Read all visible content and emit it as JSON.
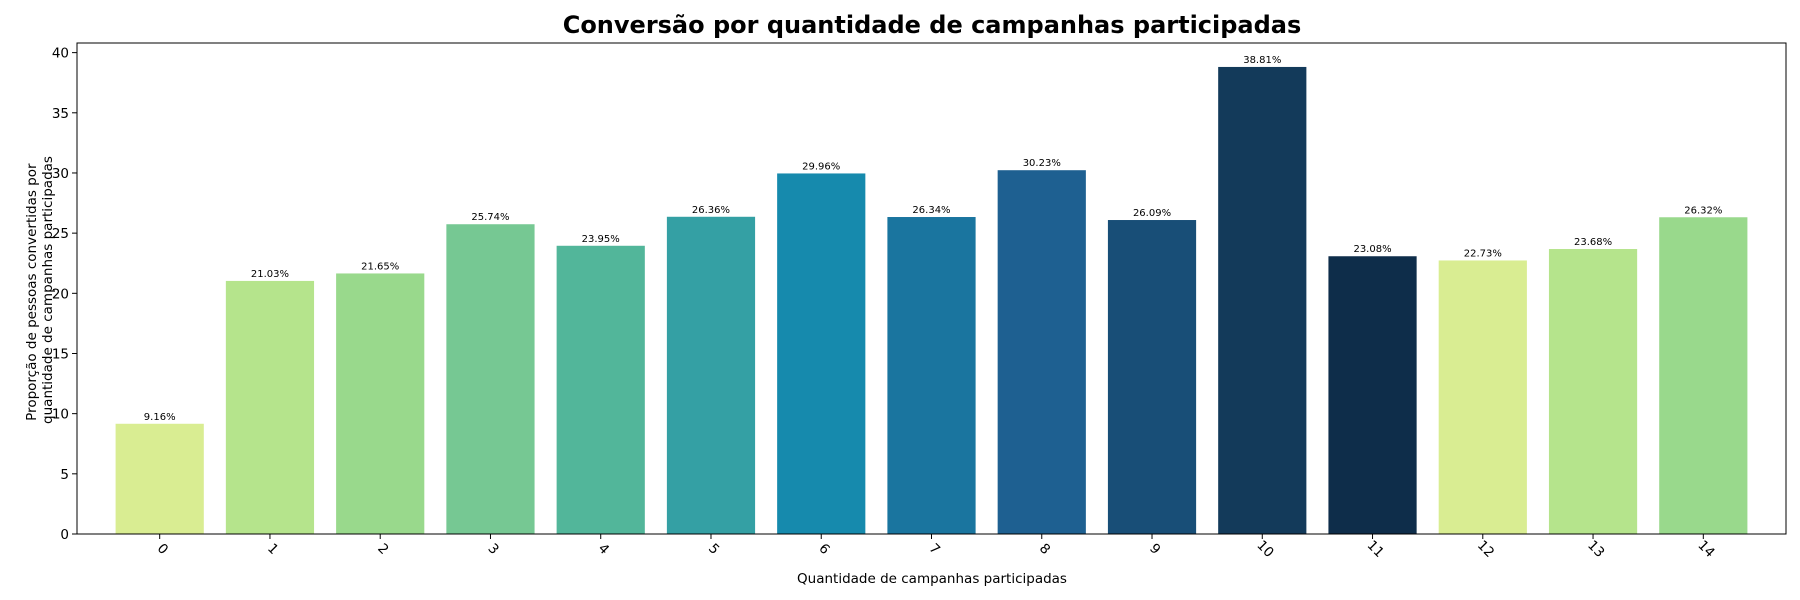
{
  "chart_data": {
    "type": "bar",
    "title": "Conversão por quantidade de campanhas participadas",
    "xlabel": "Quantidade de campanhas participadas",
    "ylabel_lines": [
      "Proporção de pessoas convertidas por",
      "quantidade de campanhas participadas"
    ],
    "categories": [
      "0",
      "1",
      "2",
      "3",
      "4",
      "5",
      "6",
      "7",
      "8",
      "9",
      "10",
      "11",
      "12",
      "13",
      "14"
    ],
    "values": [
      9.16,
      21.03,
      21.65,
      25.74,
      23.95,
      26.36,
      29.96,
      26.34,
      30.23,
      26.09,
      38.81,
      23.08,
      22.73,
      23.68,
      26.32
    ],
    "data_labels": [
      "9.16%",
      "21.03%",
      "21.65%",
      "25.74%",
      "23.95%",
      "26.36%",
      "29.96%",
      "26.34%",
      "30.23%",
      "26.09%",
      "38.81%",
      "23.08%",
      "22.73%",
      "23.68%",
      "26.32%"
    ],
    "colors": [
      "#d9ed92",
      "#b5e48c",
      "#99d98c",
      "#76c893",
      "#52b69a",
      "#34a0a4",
      "#168aad",
      "#1a759f",
      "#1e6091",
      "#184e77",
      "#133a5a",
      "#0e2d4a",
      "#d9ed92",
      "#b5e48c",
      "#99d98c"
    ],
    "ylim": [
      0,
      40.8
    ],
    "yticks": [
      0,
      5,
      10,
      15,
      20,
      25,
      30,
      35,
      40
    ],
    "xtick_rotation": 45,
    "grid": false,
    "legend": false
  }
}
